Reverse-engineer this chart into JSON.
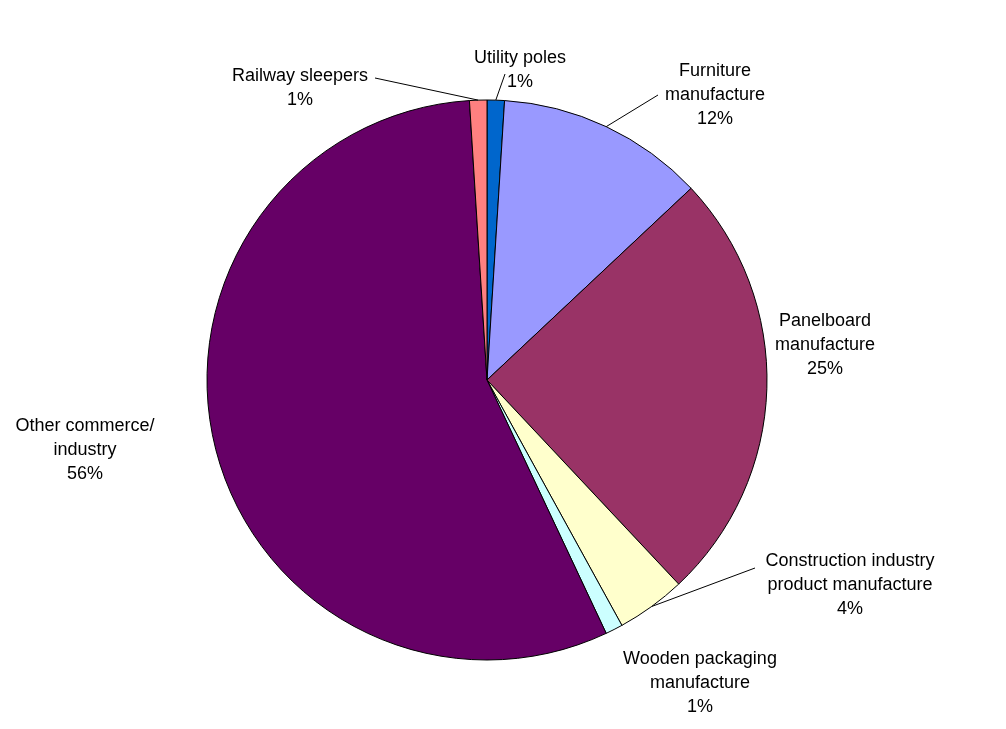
{
  "chart_data": {
    "type": "pie",
    "categories": [
      "Utility poles",
      "Furniture\nmanufacture",
      "Panelboard\nmanufacture",
      "Construction industry\nproduct manufacture",
      "Wooden packaging\nmanufacture",
      "Other commerce/\nindustry",
      "Railway sleepers"
    ],
    "values": [
      1,
      12,
      25,
      4,
      1,
      56,
      1
    ],
    "value_labels": [
      "1%",
      "12%",
      "25%",
      "4%",
      "1%",
      "56%",
      "1%"
    ],
    "colors": [
      "#0066cc",
      "#9999ff",
      "#993366",
      "#ffffcc",
      "#ccffff",
      "#660066",
      "#ff8080"
    ]
  }
}
